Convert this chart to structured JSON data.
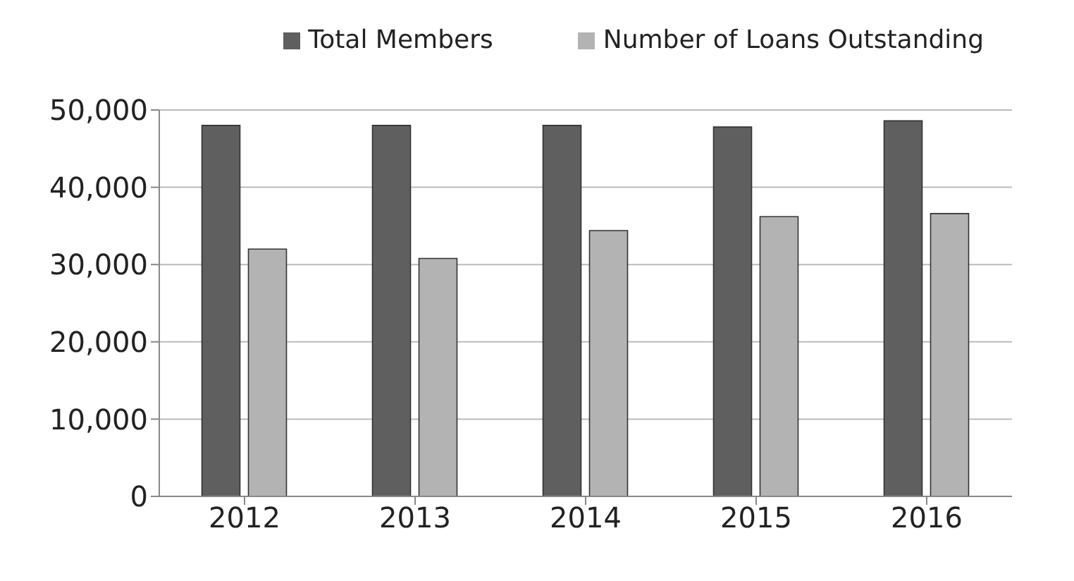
{
  "chart_data": {
    "type": "bar",
    "categories": [
      "2012",
      "2013",
      "2014",
      "2015",
      "2016"
    ],
    "series": [
      {
        "name": "Total Members",
        "color": "#5f5f5f",
        "values": [
          48000,
          48000,
          48000,
          47800,
          48600
        ]
      },
      {
        "name": "Number of Loans Outstanding",
        "color": "#b3b3b3",
        "values": [
          32000,
          30800,
          34400,
          36200,
          36600
        ]
      }
    ],
    "ylim": [
      0,
      50000
    ],
    "yticks": [
      0,
      {
        "value": 10000,
        "label": "10,000"
      },
      {
        "value": 20000,
        "label": "20,000"
      },
      {
        "value": 30000,
        "label": "30,000"
      },
      {
        "value": 40000,
        "label": "40,000"
      },
      {
        "value": 50000,
        "label": "50,000"
      }
    ],
    "grid": "y",
    "legend": "top right"
  }
}
